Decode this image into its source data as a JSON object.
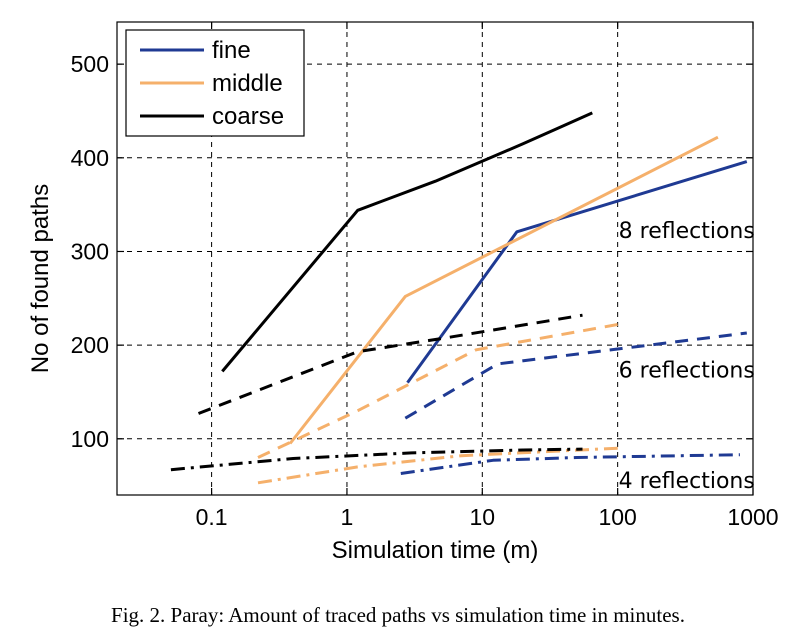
{
  "caption": "Fig. 2.   Paray: Amount of traced paths vs simulation time in minutes.",
  "chart_data": {
    "type": "line",
    "xlabel": "Simulation time (m)",
    "ylabel": "No of found paths",
    "xscale": "log",
    "xlim": [
      0.02,
      1000
    ],
    "ylim": [
      40,
      545
    ],
    "grid": true,
    "legend_position": "top-left",
    "xticks": [
      0.1,
      1,
      10,
      100,
      1000
    ],
    "xtick_labels": [
      "0.1",
      "1",
      "10",
      "100",
      "1000"
    ],
    "yticks": [
      100,
      200,
      300,
      400,
      500
    ],
    "ytick_labels": [
      "100",
      "200",
      "300",
      "400",
      "500"
    ],
    "legend": [
      {
        "label": "fine",
        "color": "#1f3a93"
      },
      {
        "label": "middle",
        "color": "#f5b06b"
      },
      {
        "label": "coarse",
        "color": "#000000"
      }
    ],
    "annotations": [
      {
        "text": "8 reflections",
        "x": 100,
        "y": 323
      },
      {
        "text": "6 reflections",
        "x": 100,
        "y": 174
      },
      {
        "text": "4 reflections",
        "x": 100,
        "y": 56
      }
    ],
    "series": [
      {
        "resolution": "fine",
        "reflections": 8,
        "color": "#1f3a93",
        "dash": "solid",
        "x": [
          2.8,
          18,
          900
        ],
        "y": [
          160,
          321,
          396
        ]
      },
      {
        "resolution": "middle",
        "reflections": 8,
        "color": "#f5b06b",
        "dash": "solid",
        "x": [
          0.38,
          2.7,
          550
        ],
        "y": [
          95,
          252,
          422
        ]
      },
      {
        "resolution": "coarse",
        "reflections": 8,
        "color": "#000000",
        "dash": "solid",
        "x": [
          0.12,
          1.2,
          4.5,
          20,
          65
        ],
        "y": [
          172,
          344,
          375,
          415,
          448
        ]
      },
      {
        "resolution": "fine",
        "reflections": 6,
        "color": "#1f3a93",
        "dash": "dashed",
        "x": [
          2.7,
          13,
          900
        ],
        "y": [
          122,
          180,
          213
        ]
      },
      {
        "resolution": "middle",
        "reflections": 6,
        "color": "#f5b06b",
        "dash": "dashed",
        "x": [
          0.22,
          1.2,
          9,
          100
        ],
        "y": [
          80,
          130,
          195,
          222
        ]
      },
      {
        "resolution": "coarse",
        "reflections": 6,
        "color": "#000000",
        "dash": "dashed",
        "x": [
          0.08,
          1.2,
          5.5,
          55
        ],
        "y": [
          127,
          193,
          208,
          232
        ]
      },
      {
        "resolution": "fine",
        "reflections": 4,
        "color": "#1f3a93",
        "dash": "dashdot",
        "x": [
          2.5,
          12,
          50,
          800
        ],
        "y": [
          63,
          77,
          80,
          83
        ]
      },
      {
        "resolution": "middle",
        "reflections": 4,
        "color": "#f5b06b",
        "dash": "dashdot",
        "x": [
          0.22,
          1.2,
          7,
          100
        ],
        "y": [
          53,
          70,
          82,
          90
        ]
      },
      {
        "resolution": "coarse",
        "reflections": 4,
        "color": "#000000",
        "dash": "dashdot",
        "x": [
          0.05,
          0.4,
          3,
          20,
          55
        ],
        "y": [
          67,
          79,
          85,
          88,
          89
        ]
      }
    ]
  }
}
